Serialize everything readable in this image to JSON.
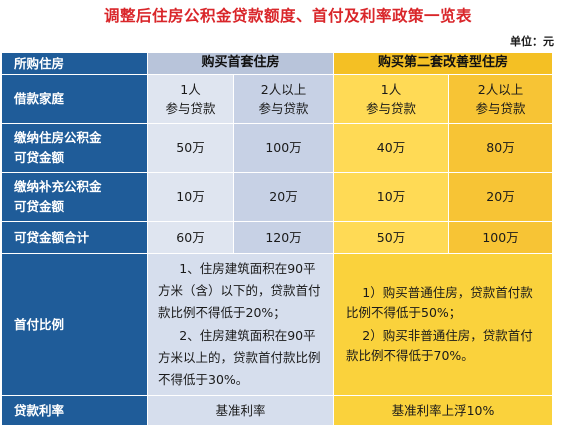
{
  "title": "调整后住房公积金贷款额度、首付及利率政策一览表",
  "unit": "单位：元",
  "colors": {
    "header_blue": "#1f5c99",
    "first_home": "#b8c4da",
    "second_home": "#f4c024",
    "title_red": "#d9262a"
  },
  "header": {
    "row_label": "所购住房",
    "first_home": "购买首套住房",
    "second_home": "购买第二套改善型住房"
  },
  "rows": {
    "borrower": {
      "label": "借款家庭",
      "c1": [
        "1人",
        "参与贷款"
      ],
      "c2": [
        "2人以上",
        "参与贷款"
      ],
      "c3": [
        "1人",
        "参与贷款"
      ],
      "c4": [
        "2人以上",
        "参与贷款"
      ]
    },
    "housing_fund": {
      "label": [
        "缴纳住房公积金",
        "可贷金额"
      ],
      "values": [
        "50万",
        "100万",
        "40万",
        "80万"
      ]
    },
    "supplementary_fund": {
      "label": [
        "缴纳补充公积金",
        "可贷金额"
      ],
      "values": [
        "10万",
        "20万",
        "10万",
        "20万"
      ]
    },
    "total": {
      "label": "可贷金额合计",
      "values": [
        "60万",
        "120万",
        "50万",
        "100万"
      ]
    },
    "down_payment": {
      "label": "首付比例",
      "first_home": [
        "1、住房建筑面积在90平方米（含）以下的，贷款首付款比例不得低于20%；",
        "2、住房建筑面积在90平方米以上的，贷款首付款比例不得低于30%。"
      ],
      "second_home": [
        "1）购买普通住房，贷款首付款比例不得低于50%；",
        "2）购买非普通住房，贷款首付款比例不得低于70%。"
      ]
    },
    "rate": {
      "label": "贷款利率",
      "first_home": "基准利率",
      "second_home": "基准利率上浮10%"
    }
  }
}
